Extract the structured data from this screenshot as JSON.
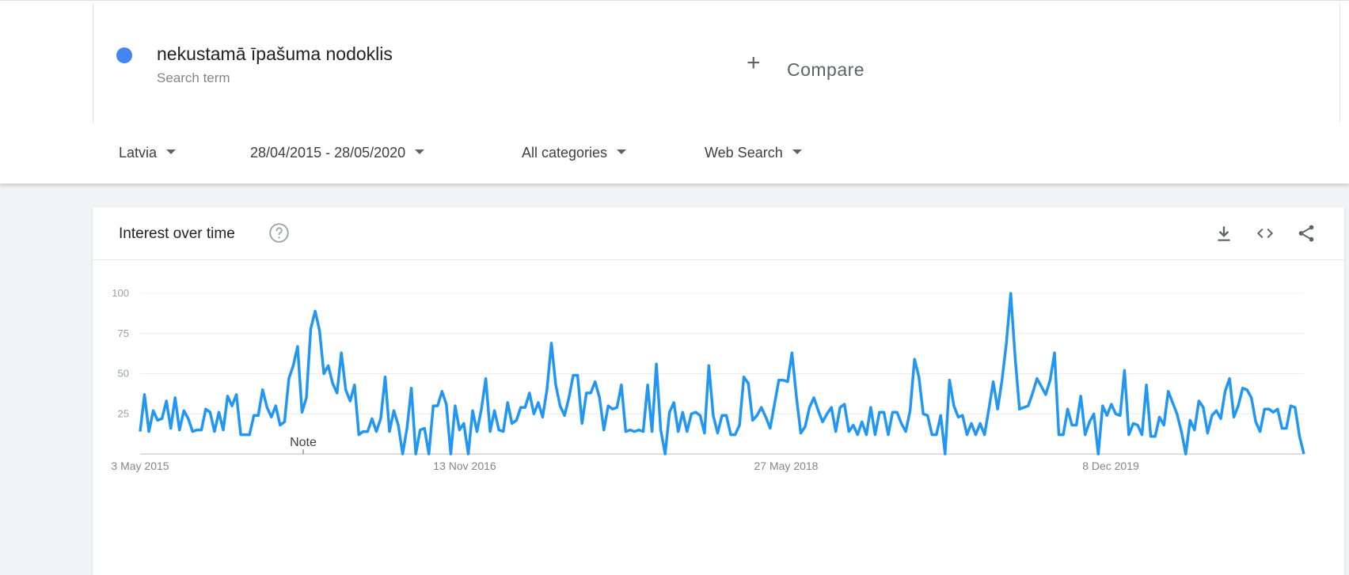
{
  "search_term": {
    "title": "nekustamā īpašuma nodoklis",
    "subtitle": "Search term",
    "color": "#4285f4"
  },
  "compare": {
    "icon": "plus-icon",
    "plus": "+",
    "label": "Compare"
  },
  "filters": {
    "region": "Latvia",
    "date_range": "28/04/2015 - 28/05/2020",
    "category": "All categories",
    "search_type": "Web Search"
  },
  "card": {
    "title": "Interest over time",
    "icons": [
      "help-icon",
      "download-icon",
      "embed-icon",
      "share-icon"
    ]
  },
  "chart_data": {
    "type": "line",
    "title": "Interest over time",
    "series_color": "#2196f3",
    "ylim": [
      0,
      100
    ],
    "yticks": [
      25,
      50,
      75,
      100
    ],
    "ytick_labels": [
      "25",
      "50",
      "75",
      "100"
    ],
    "xtick_labels": [
      "3 May 2015",
      "13 Nov 2016",
      "27 May 2018",
      "8 Dec 2019"
    ],
    "annotation": "Note",
    "grid": true,
    "series": [
      {
        "values": [
          14,
          37,
          14,
          27,
          21,
          22,
          33,
          16,
          35,
          15,
          27,
          22,
          14,
          15,
          15,
          28,
          26,
          14,
          26,
          15,
          36,
          30,
          37,
          12,
          12,
          12,
          24,
          24,
          40,
          29,
          23,
          30,
          18,
          20,
          47,
          55,
          67,
          26,
          35,
          78,
          89,
          77,
          50,
          55,
          44,
          38,
          63,
          40,
          33,
          43,
          12,
          14,
          14,
          22,
          14,
          22,
          48,
          14,
          27,
          18,
          0,
          16,
          41,
          0,
          15,
          16,
          0,
          30,
          30,
          39,
          31,
          0,
          30,
          15,
          19,
          0,
          27,
          14,
          28,
          47,
          14,
          27,
          15,
          14,
          32,
          19,
          21,
          29,
          29,
          38,
          25,
          32,
          23,
          40,
          69,
          43,
          30,
          24,
          35,
          49,
          49,
          19,
          38,
          38,
          45,
          35,
          15,
          30,
          28,
          29,
          43,
          14,
          15,
          14,
          15,
          14,
          43,
          14,
          56,
          15,
          0,
          26,
          32,
          14,
          26,
          14,
          25,
          26,
          24,
          13,
          55,
          24,
          13,
          24,
          24,
          12,
          12,
          18,
          48,
          44,
          21,
          24,
          29,
          23,
          16,
          31,
          46,
          46,
          45,
          63,
          36,
          13,
          17,
          29,
          35,
          27,
          20,
          25,
          29,
          14,
          29,
          31,
          14,
          18,
          12,
          20,
          12,
          29,
          12,
          26,
          26,
          12,
          26,
          26,
          19,
          14,
          27,
          59,
          48,
          25,
          24,
          12,
          12,
          24,
          0,
          46,
          30,
          23,
          24,
          12,
          19,
          12,
          19,
          12,
          28,
          45,
          28,
          46,
          69,
          100,
          60,
          28,
          29,
          30,
          38,
          47,
          42,
          37,
          46,
          63,
          12,
          12,
          28,
          18,
          18,
          36,
          12,
          20,
          25,
          0,
          30,
          24,
          31,
          25,
          24,
          52,
          12,
          19,
          18,
          12,
          43,
          11,
          11,
          23,
          18,
          39,
          32,
          25,
          14,
          0,
          21,
          15,
          33,
          29,
          13,
          24,
          27,
          22,
          39,
          47,
          23,
          30,
          41,
          40,
          35,
          20,
          14,
          28,
          28,
          26,
          28,
          16,
          16,
          30,
          29,
          11,
          0
        ]
      }
    ]
  }
}
